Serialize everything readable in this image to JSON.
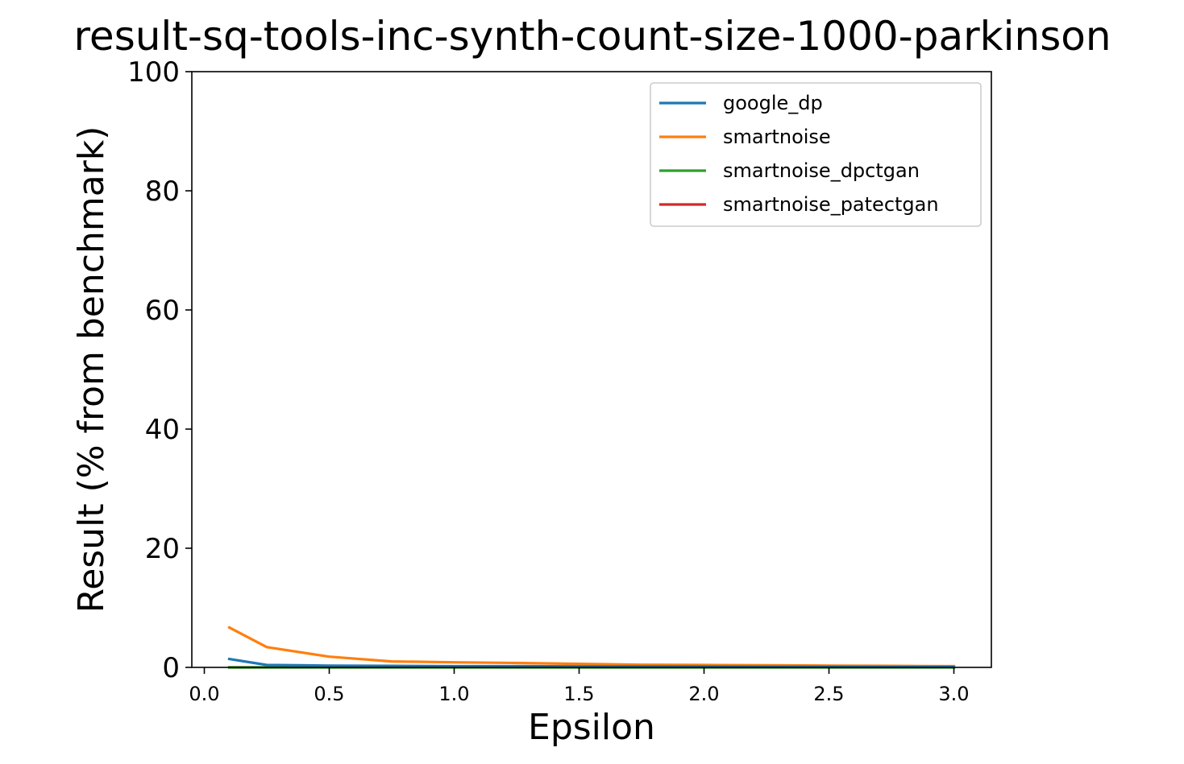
{
  "chart_data": {
    "type": "line",
    "title": "result-sq-tools-inc-synth-count-size-1000-parkinson",
    "xlabel": "Epsilon",
    "ylabel": "Result (% from benchmark)",
    "xlim": [
      -0.05,
      3.15
    ],
    "ylim": [
      0,
      100
    ],
    "xticks": [
      0.0,
      0.5,
      1.0,
      1.5,
      2.0,
      2.5,
      3.0
    ],
    "xtick_labels": [
      "0.0",
      "0.5",
      "1.0",
      "1.5",
      "2.0",
      "2.5",
      "3.0"
    ],
    "yticks": [
      0,
      20,
      40,
      60,
      80,
      100
    ],
    "ytick_labels": [
      "0",
      "20",
      "40",
      "60",
      "80",
      "100"
    ],
    "grid": false,
    "legend_position": "top-right",
    "x": [
      0.1,
      0.25,
      0.5,
      0.75,
      1.0,
      1.25,
      1.5,
      1.75,
      2.0,
      2.25,
      2.5,
      2.75,
      3.0
    ],
    "series": [
      {
        "name": "google_dp",
        "color": "#1f77b4",
        "values": [
          1.4,
          0.4,
          0.3,
          0.25,
          0.2,
          0.2,
          0.18,
          0.15,
          0.15,
          0.12,
          0.12,
          0.1,
          0.1
        ]
      },
      {
        "name": "smartnoise",
        "color": "#ff7f0e",
        "values": [
          6.7,
          3.4,
          1.8,
          1.0,
          0.85,
          0.75,
          0.6,
          0.45,
          0.4,
          0.35,
          0.3,
          0.25,
          0.2
        ]
      },
      {
        "name": "smartnoise_dpctgan",
        "color": "#2ca02c",
        "values": [
          0,
          0,
          0,
          0,
          0,
          0,
          0,
          0,
          0,
          0,
          0,
          0,
          0
        ]
      },
      {
        "name": "smartnoise_patectgan",
        "color": "#d62728",
        "values": [
          0,
          0,
          0,
          0,
          0,
          0,
          0,
          0,
          0,
          0,
          0,
          0,
          0
        ]
      }
    ]
  }
}
